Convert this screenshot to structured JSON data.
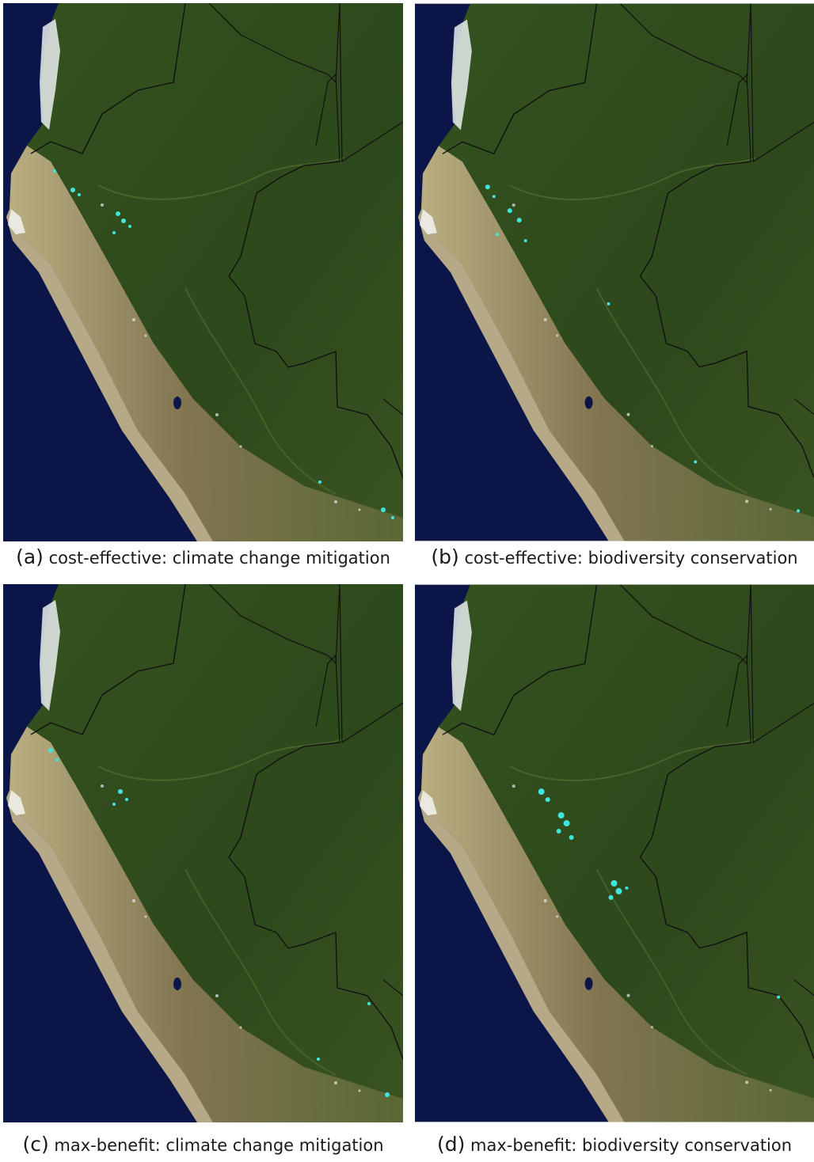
{
  "figure": {
    "panels": [
      {
        "label": "(a)",
        "caption": "cost-effective: climate change mitigation"
      },
      {
        "label": "(b)",
        "caption": "cost-effective: biodiversity conservation"
      },
      {
        "label": "(c)",
        "caption": "max-benefit: climate change mitigation"
      },
      {
        "label": "(d)",
        "caption": "max-benefit: biodiversity conservation"
      }
    ]
  },
  "colors": {
    "ocean": "#0b1547",
    "forest": "#2f4a1c",
    "andes": "#8a7a55",
    "coast": "#c9b98a",
    "snow": "#e9eef0",
    "highlight": "#3fe6e0",
    "border": "#111111"
  }
}
